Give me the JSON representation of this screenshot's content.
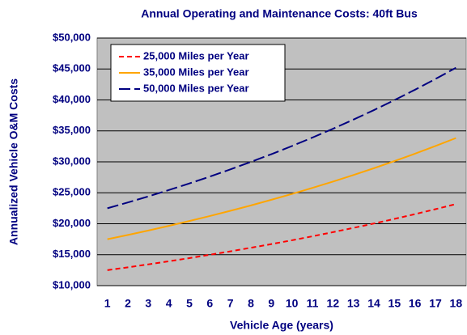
{
  "chart_data": {
    "type": "line",
    "title": "Annual Operating and Maintenance Costs: 40ft Bus",
    "x_label": "Vehicle Age (years)",
    "y_label": "Annualized Vehicle O&M Costs",
    "categories": [
      1,
      2,
      3,
      4,
      5,
      6,
      7,
      8,
      9,
      10,
      11,
      12,
      13,
      14,
      15,
      16,
      17,
      18
    ],
    "series": [
      {
        "name": "25,000 Miles per Year",
        "color": "#ff0000",
        "dash": "6,4",
        "values": [
          12500,
          12960,
          13440,
          13940,
          14450,
          14990,
          15540,
          16120,
          16710,
          17330,
          17970,
          18640,
          19330,
          20040,
          20780,
          21550,
          22350,
          23180
        ]
      },
      {
        "name": "35,000 Miles per Year",
        "color": "#ffa500",
        "dash": "none",
        "values": [
          17500,
          18190,
          18910,
          19660,
          20440,
          21250,
          22090,
          22960,
          23870,
          24810,
          25790,
          26810,
          27870,
          28970,
          30120,
          31310,
          32550,
          33840
        ]
      },
      {
        "name": "50,000 Miles per Year",
        "color": "#000080",
        "dash": "14,5",
        "values": [
          22500,
          23440,
          24420,
          25450,
          26510,
          27620,
          28780,
          29990,
          31240,
          32550,
          33920,
          35340,
          36820,
          38360,
          39970,
          41640,
          43380,
          45200
        ]
      }
    ],
    "ylim": [
      10000,
      50000
    ],
    "yticks": [
      {
        "value": 10000,
        "label": "$10,000"
      },
      {
        "value": 15000,
        "label": "$15,000"
      },
      {
        "value": 20000,
        "label": "$20,000"
      },
      {
        "value": 25000,
        "label": "$25,000"
      },
      {
        "value": 30000,
        "label": "$30,000"
      },
      {
        "value": 35000,
        "label": "$35,000"
      },
      {
        "value": 40000,
        "label": "$40,000"
      },
      {
        "value": 45000,
        "label": "$45,000"
      },
      {
        "value": 50000,
        "label": "$50,000"
      }
    ],
    "grid": true,
    "legend": "top-left"
  }
}
